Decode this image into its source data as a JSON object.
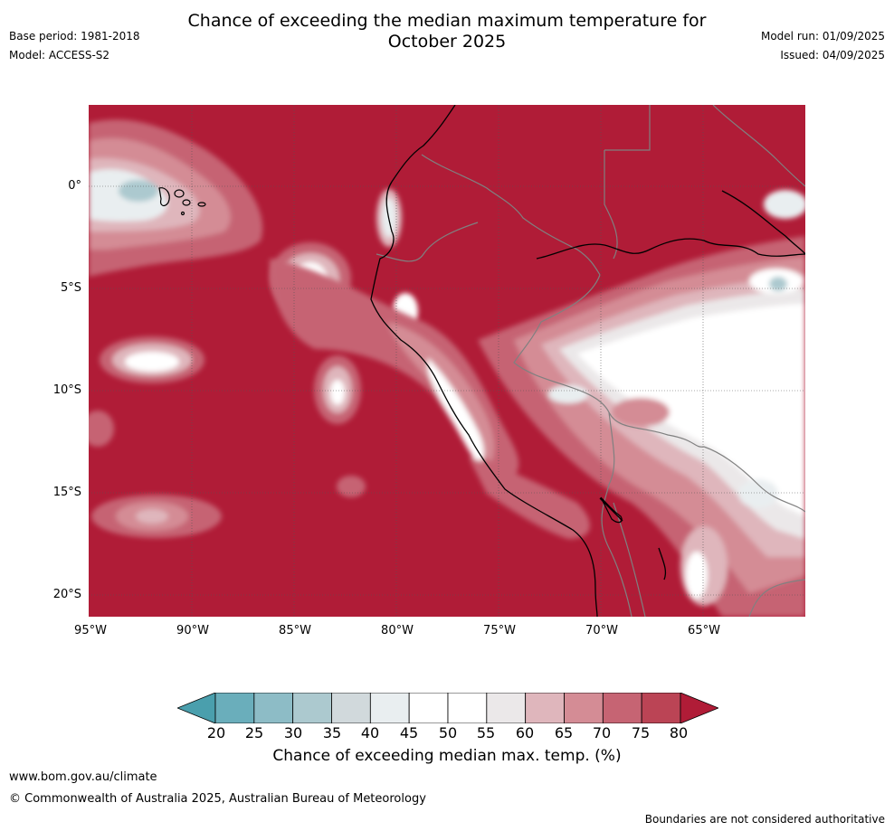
{
  "title_line1": "Chance of exceeding the median maximum temperature for",
  "title_line2": "October 2025",
  "meta_left": {
    "base_period": "Base period: 1981-2018",
    "model": "Model: ACCESS-S2"
  },
  "meta_right": {
    "model_run": "Model run: 01/09/2025",
    "issued": "Issued: 04/09/2025"
  },
  "lat_labels": [
    "0°",
    "5°S",
    "10°S",
    "15°S",
    "20°S"
  ],
  "lon_labels": [
    "95°W",
    "90°W",
    "85°W",
    "80°W",
    "75°W",
    "70°W",
    "65°W"
  ],
  "colorbar": {
    "ticks": [
      "20",
      "25",
      "30",
      "35",
      "40",
      "45",
      "50",
      "55",
      "60",
      "65",
      "70",
      "75",
      "80"
    ],
    "colors": [
      "#4a9fad",
      "#6aaebb",
      "#8dbcc6",
      "#acc9cf",
      "#d1d9dc",
      "#e9eef0",
      "#ffffff",
      "#ffffff",
      "#ebe8e9",
      "#dfb6bc",
      "#d48c95",
      "#c66473",
      "#bb4455",
      "#b01c37"
    ],
    "label": "Chance of exceeding median max. temp. (%)"
  },
  "footer": {
    "url": "www.bom.gov.au/climate",
    "copyright": "© Commonwealth of Australia 2025, Australian Bureau of Meteorology",
    "note": "Boundaries are not considered authoritative"
  }
}
